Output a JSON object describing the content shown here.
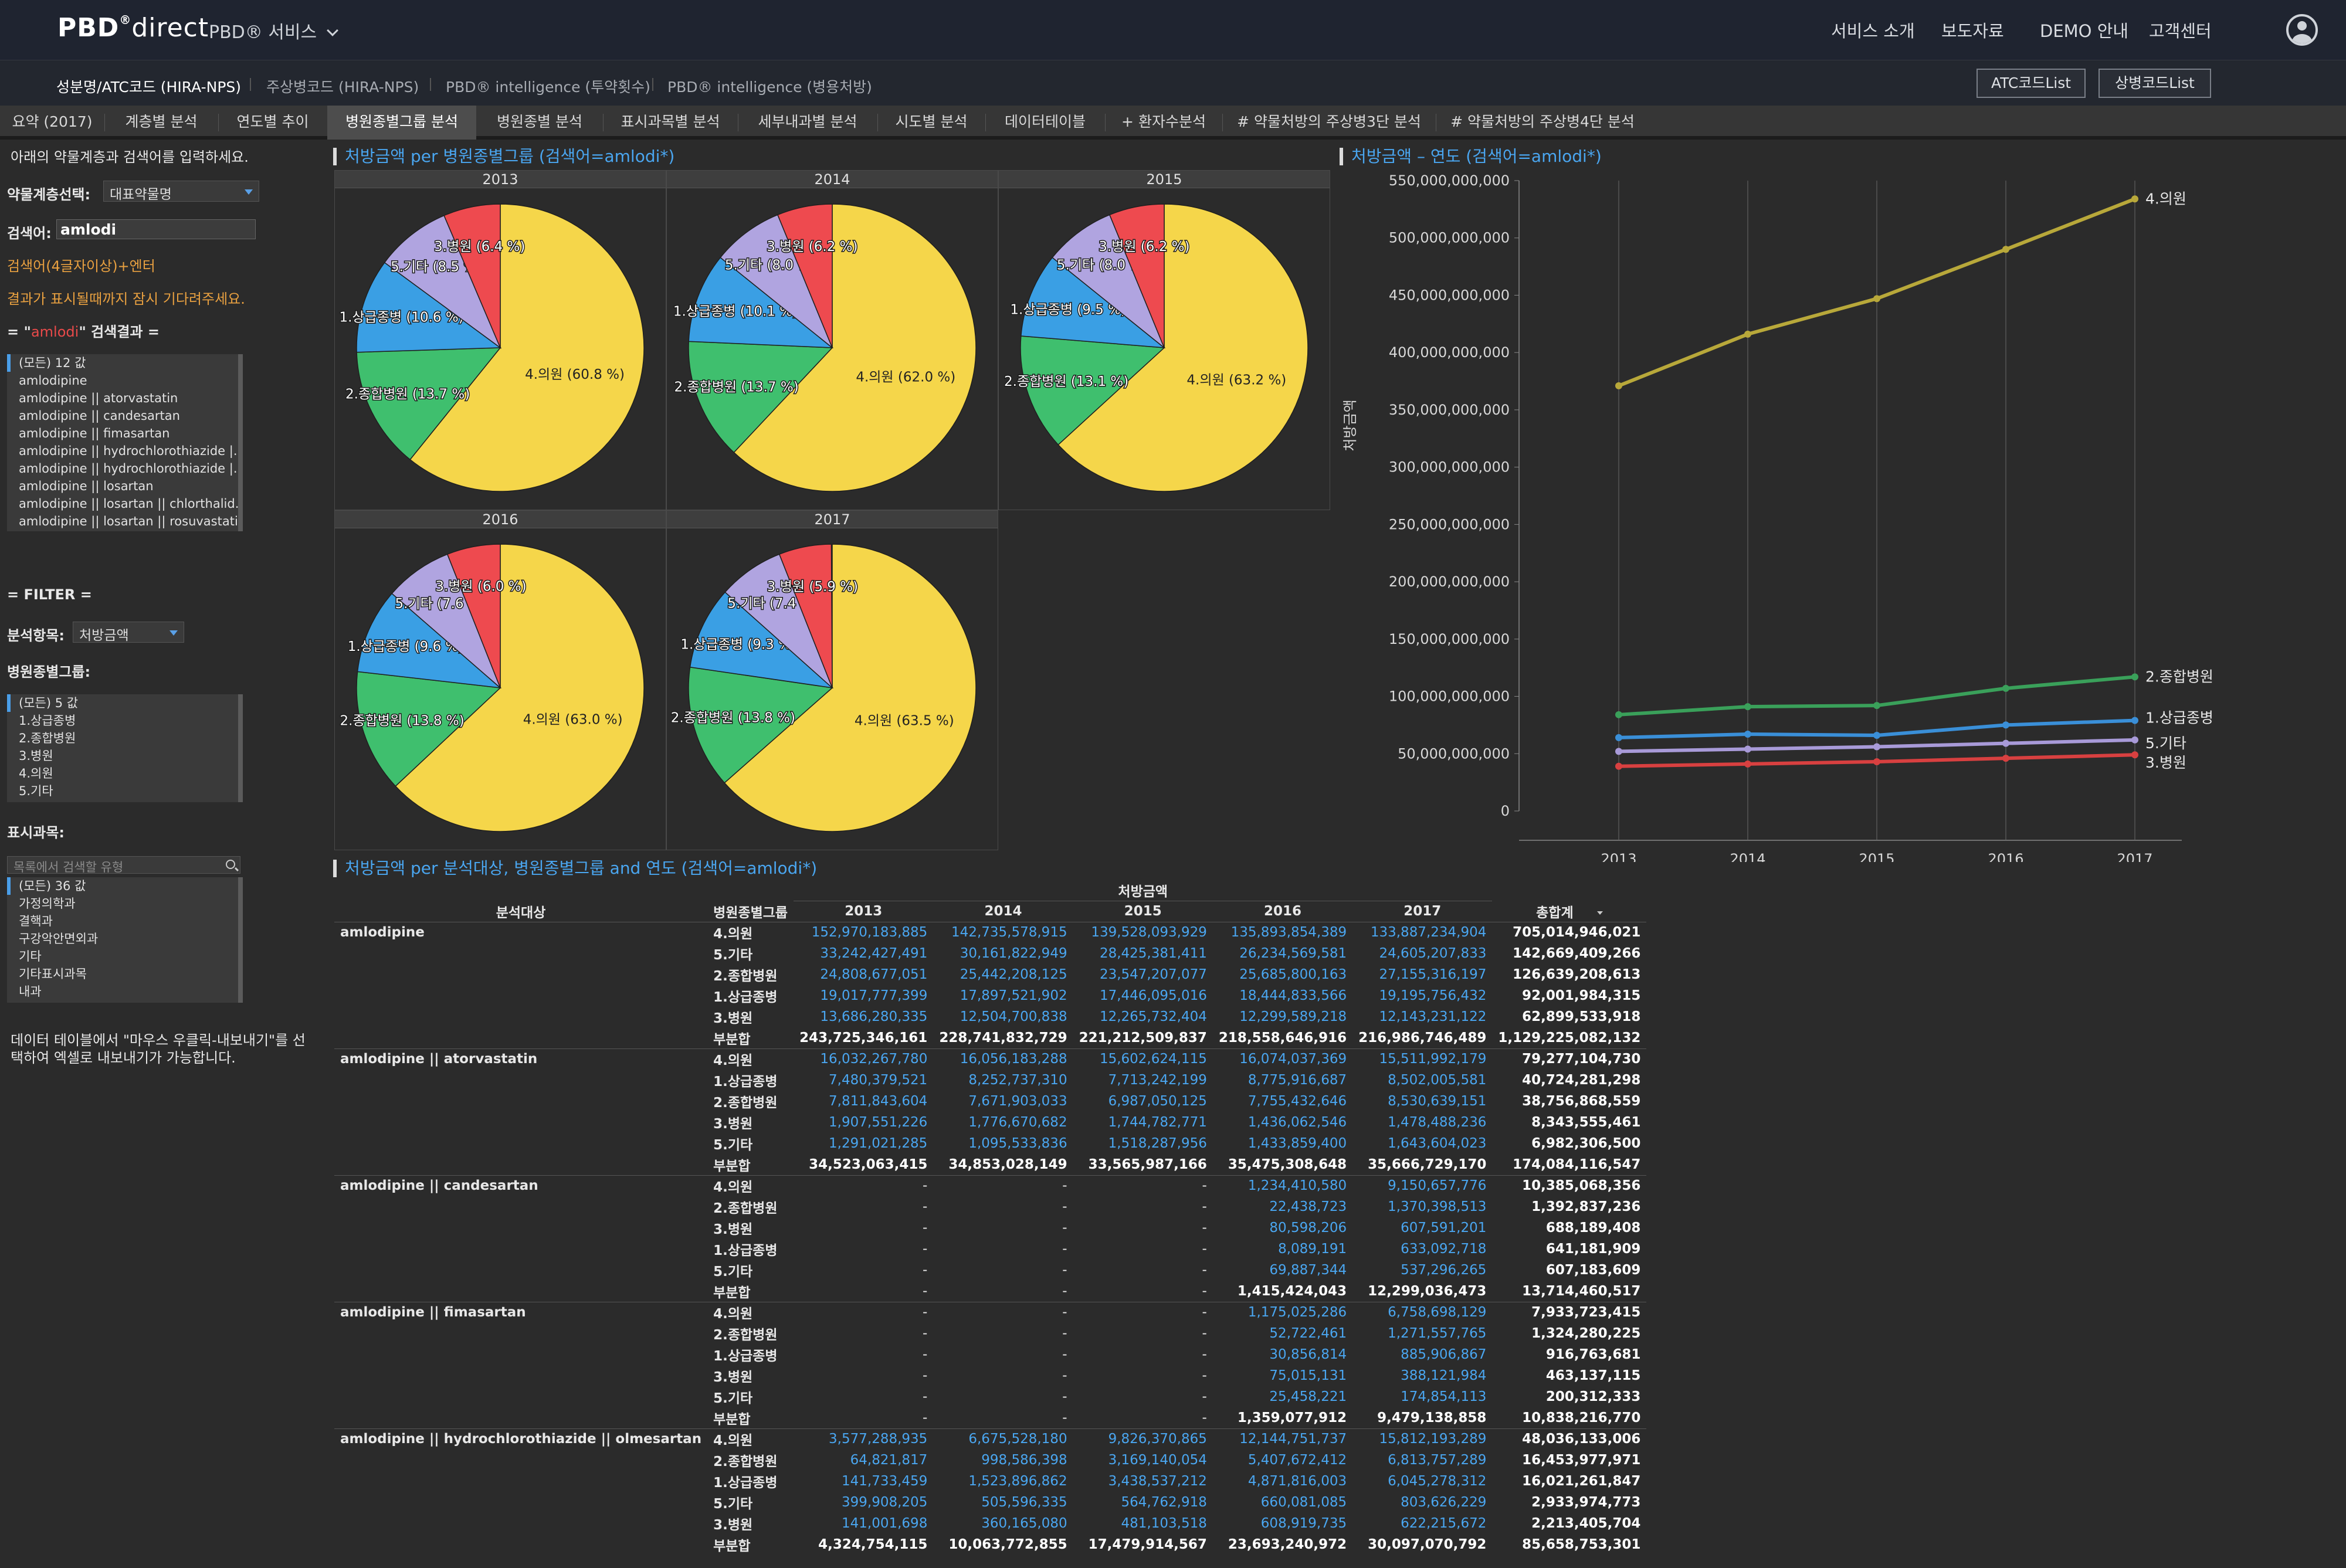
{
  "header": {
    "logo_main": "PBD",
    "logo_reg": "®",
    "logo_thin": "direct",
    "service_menu": "PBD® 서비스",
    "nav": [
      "서비스 소개",
      "보도자료",
      "DEMO 안내",
      "고객센터"
    ]
  },
  "subnav": {
    "tabs": [
      "성분명/ATC코드 (HIRA-NPS)",
      "주상병코드 (HIRA-NPS)",
      "PBD® intelligence (투약횟수)",
      "PBD® intelligence (병용처방)"
    ],
    "atc_button": "ATC코드List",
    "disease_button": "상병코드List"
  },
  "tabs": [
    "요약 (2017)",
    "계층별 분석",
    "연도별 추이",
    "병원종별그룹 분석",
    "병원종별 분석",
    "표시과목별 분석",
    "세부내과별 분석",
    "시도별 분석",
    "데이터테이블",
    "+ 환자수분석",
    "# 약물처방의 주상병3단 분석",
    "# 약물처방의 주상병4단 분석"
  ],
  "left": {
    "intro": "아래의 약물계층과 검색어를 입력하세요.",
    "level_label": "약물계층선택:",
    "level_value": "대표약물명",
    "search_label": "검색어:",
    "search_value": "amlodi",
    "hint1": "검색어(4글자이상)+엔터",
    "hint2": "결과가 표시될때까지 잠시 기다려주세요.",
    "result_prefix": "= \"",
    "result_term": "amlodi",
    "result_suffix": "\" 검색결과 =",
    "results": [
      "(모든) 12 값",
      "amlodipine",
      "amlodipine || atorvastatin",
      "amlodipine || candesartan",
      "amlodipine || fimasartan",
      "amlodipine || hydrochlorothiazide |...",
      "amlodipine || hydrochlorothiazide |...",
      "amlodipine || losartan",
      "amlodipine || losartan || chlorthalid...",
      "amlodipine || losartan || rosuvastatin"
    ],
    "filter_title": "= FILTER =",
    "analysis_label": "분석항목:",
    "analysis_value": "처방금액",
    "hospital_label": "병원종별그룹:",
    "hospital_items": [
      "(모든) 5 값",
      "1.상급종병",
      "2.종합병원",
      "3.병원",
      "4.의원",
      "5.기타"
    ],
    "dept_label": "표시과목:",
    "dept_search_placeholder": "목록에서 검색할 유형",
    "dept_items": [
      "(모든) 36 값",
      "가정의학과",
      "결핵과",
      "구강악안면외과",
      "기타",
      "기타표시과목",
      "내과"
    ],
    "footer_note1": "데이터 테이블에서 \"마우스 우클릭-내보내기\"를 선",
    "footer_note2": "택하여 엑셀로 내보내기가 가능합니다."
  },
  "pie_section": {
    "title": "처방금액 per 병원종별그룹 (검색어=amlodi*)",
    "years": [
      "2013",
      "2014",
      "2015",
      "2016",
      "2017"
    ],
    "pies": [
      {
        "year": "2013",
        "slices": [
          {
            "name": "4.의원",
            "pct": 60.8,
            "label": "4.의원  (60.8 %)"
          },
          {
            "name": "2.종합병원",
            "pct": 13.7,
            "label": "2.종합병원  (13.7 %)"
          },
          {
            "name": "1.상급종병",
            "pct": 10.6,
            "label": "1.상급종병  (10.6 %)"
          },
          {
            "name": "5.기타",
            "pct": 8.5,
            "label": "5.기타  (8.5 %)"
          },
          {
            "name": "3.병원",
            "pct": 6.4,
            "label": "3.병원  (6.4 %)"
          }
        ]
      },
      {
        "year": "2014",
        "slices": [
          {
            "name": "4.의원",
            "pct": 62.0,
            "label": "4.의원  (62.0 %)"
          },
          {
            "name": "2.종합병원",
            "pct": 13.7,
            "label": "2.종합병원  (13.7 %)"
          },
          {
            "name": "1.상급종병",
            "pct": 10.1,
            "label": "1.상급종병  (10.1 %)"
          },
          {
            "name": "5.기타",
            "pct": 8.0,
            "label": "5.기타  (8.0 %)"
          },
          {
            "name": "3.병원",
            "pct": 6.2,
            "label": "3.병원  (6.2 %)"
          }
        ]
      },
      {
        "year": "2015",
        "slices": [
          {
            "name": "4.의원",
            "pct": 63.2,
            "label": "4.의원  (63.2 %)"
          },
          {
            "name": "2.종합병원",
            "pct": 13.1,
            "label": "2.종합병원  (13.1 %)"
          },
          {
            "name": "1.상급종병",
            "pct": 9.5,
            "label": "1.상급종병  (9.5 %)"
          },
          {
            "name": "5.기타",
            "pct": 8.0,
            "label": "5.기타  (8.0 %)"
          },
          {
            "name": "3.병원",
            "pct": 6.2,
            "label": "3.병원  (6.2 %)"
          }
        ]
      },
      {
        "year": "2016",
        "slices": [
          {
            "name": "4.의원",
            "pct": 63.0,
            "label": "4.의원  (63.0 %)"
          },
          {
            "name": "2.종합병원",
            "pct": 13.8,
            "label": "2.종합병원  (13.8 %)"
          },
          {
            "name": "1.상급종병",
            "pct": 9.6,
            "label": "1.상급종병  (9.6 %)"
          },
          {
            "name": "5.기타",
            "pct": 7.6,
            "label": "5.기타  (7.6 %)"
          },
          {
            "name": "3.병원",
            "pct": 6.0,
            "label": "3.병원  (6.0 %)"
          }
        ]
      },
      {
        "year": "2017",
        "slices": [
          {
            "name": "4.의원",
            "pct": 63.5,
            "label": "4.의원  (63.5 %)"
          },
          {
            "name": "2.종합병원",
            "pct": 13.8,
            "label": "2.종합병원  (13.8 %)"
          },
          {
            "name": "1.상급종병",
            "pct": 9.3,
            "label": "1.상급종병  (9.3 %)"
          },
          {
            "name": "5.기타",
            "pct": 7.4,
            "label": "5.기타  (7.4 %)"
          },
          {
            "name": "3.병원",
            "pct": 5.9,
            "label": "3.병원  (5.9 %)"
          }
        ]
      }
    ],
    "colors": {
      "4.의원": "#f5d64a",
      "2.종합병원": "#3fbf6e",
      "1.상급종병": "#3a9fe4",
      "5.기타": "#b0a4e0",
      "3.병원": "#ee4a4f"
    }
  },
  "chart_data": {
    "type": "line",
    "title": "처방금액 – 연도 (검색어=amlodi*)",
    "ylabel": "처방금액",
    "x": [
      "2013",
      "2014",
      "2015",
      "2016",
      "2017"
    ],
    "ylim": [
      0,
      550000000000
    ],
    "yticks": [
      "550,000,000,000",
      "500,000,000,000",
      "450,000,000,000",
      "400,000,000,000",
      "350,000,000,000",
      "300,000,000,000",
      "250,000,000,000",
      "200,000,000,000",
      "150,000,000,000",
      "100,000,000,000",
      "50,000,000,000",
      "0"
    ],
    "series": [
      {
        "name": "4.의원",
        "color": "#b8a83a",
        "values": [
          371000000000,
          416000000000,
          447000000000,
          490000000000,
          534000000000
        ]
      },
      {
        "name": "2.종합병원",
        "color": "#3aa05a",
        "values": [
          84000000000,
          91000000000,
          92000000000,
          107000000000,
          117000000000
        ]
      },
      {
        "name": "1.상급종병",
        "color": "#3a8fd8",
        "values": [
          64000000000,
          67000000000,
          66000000000,
          75000000000,
          79000000000
        ]
      },
      {
        "name": "5.기타",
        "color": "#a89ad8",
        "values": [
          52000000000,
          54000000000,
          56000000000,
          59000000000,
          62000000000
        ]
      },
      {
        "name": "3.병원",
        "color": "#d84040",
        "values": [
          39000000000,
          41000000000,
          43000000000,
          46000000000,
          49000000000
        ]
      }
    ]
  },
  "table": {
    "title": "처방금액 per 분석대상, 병원종별그룹 and 연도 (검색어=amlodi*)",
    "measure": "처방금액",
    "col_target": "분석대상",
    "col_group": "병원종별그룹",
    "years": [
      "2013",
      "2014",
      "2015",
      "2016",
      "2017"
    ],
    "col_total": "총합계",
    "groups": [
      {
        "name": "amlodipine",
        "rows": [
          {
            "g": "4.의원",
            "v": [
              "152,970,183,885",
              "142,735,578,915",
              "139,528,093,929",
              "135,893,854,389",
              "133,887,234,904"
            ],
            "t": "705,014,946,021"
          },
          {
            "g": "5.기타",
            "v": [
              "33,242,427,491",
              "30,161,822,949",
              "28,425,381,411",
              "26,234,569,581",
              "24,605,207,833"
            ],
            "t": "142,669,409,266"
          },
          {
            "g": "2.종합병원",
            "v": [
              "24,808,677,051",
              "25,442,208,125",
              "23,547,207,077",
              "25,685,800,163",
              "27,155,316,197"
            ],
            "t": "126,639,208,613"
          },
          {
            "g": "1.상급종병",
            "v": [
              "19,017,777,399",
              "17,897,521,902",
              "17,446,095,016",
              "18,444,833,566",
              "19,195,756,432"
            ],
            "t": "92,001,984,315"
          },
          {
            "g": "3.병원",
            "v": [
              "13,686,280,335",
              "12,504,700,838",
              "12,265,732,404",
              "12,299,589,218",
              "12,143,231,122"
            ],
            "t": "62,899,533,918"
          },
          {
            "g": "부분합",
            "sub": true,
            "v": [
              "243,725,346,161",
              "228,741,832,729",
              "221,212,509,837",
              "218,558,646,916",
              "216,986,746,489"
            ],
            "t": "1,129,225,082,132"
          }
        ]
      },
      {
        "name": "amlodipine || atorvastatin",
        "rows": [
          {
            "g": "4.의원",
            "v": [
              "16,032,267,780",
              "16,056,183,288",
              "15,602,624,115",
              "16,074,037,369",
              "15,511,992,179"
            ],
            "t": "79,277,104,730"
          },
          {
            "g": "1.상급종병",
            "v": [
              "7,480,379,521",
              "8,252,737,310",
              "7,713,242,199",
              "8,775,916,687",
              "8,502,005,581"
            ],
            "t": "40,724,281,298"
          },
          {
            "g": "2.종합병원",
            "v": [
              "7,811,843,604",
              "7,671,903,033",
              "6,987,050,125",
              "7,755,432,646",
              "8,530,639,151"
            ],
            "t": "38,756,868,559"
          },
          {
            "g": "3.병원",
            "v": [
              "1,907,551,226",
              "1,776,670,682",
              "1,744,782,771",
              "1,436,062,546",
              "1,478,488,236"
            ],
            "t": "8,343,555,461"
          },
          {
            "g": "5.기타",
            "v": [
              "1,291,021,285",
              "1,095,533,836",
              "1,518,287,956",
              "1,433,859,400",
              "1,643,604,023"
            ],
            "t": "6,982,306,500"
          },
          {
            "g": "부분합",
            "sub": true,
            "v": [
              "34,523,063,415",
              "34,853,028,149",
              "33,565,987,166",
              "35,475,308,648",
              "35,666,729,170"
            ],
            "t": "174,084,116,547"
          }
        ]
      },
      {
        "name": "amlodipine || candesartan",
        "rows": [
          {
            "g": "4.의원",
            "v": [
              "-",
              "-",
              "-",
              "1,234,410,580",
              "9,150,657,776"
            ],
            "t": "10,385,068,356"
          },
          {
            "g": "2.종합병원",
            "v": [
              "-",
              "-",
              "-",
              "22,438,723",
              "1,370,398,513"
            ],
            "t": "1,392,837,236"
          },
          {
            "g": "3.병원",
            "v": [
              "-",
              "-",
              "-",
              "80,598,206",
              "607,591,201"
            ],
            "t": "688,189,408"
          },
          {
            "g": "1.상급종병",
            "v": [
              "-",
              "-",
              "-",
              "8,089,191",
              "633,092,718"
            ],
            "t": "641,181,909"
          },
          {
            "g": "5.기타",
            "v": [
              "-",
              "-",
              "-",
              "69,887,344",
              "537,296,265"
            ],
            "t": "607,183,609"
          },
          {
            "g": "부분합",
            "sub": true,
            "v": [
              "-",
              "-",
              "-",
              "1,415,424,043",
              "12,299,036,473"
            ],
            "t": "13,714,460,517"
          }
        ]
      },
      {
        "name": "amlodipine || fimasartan",
        "rows": [
          {
            "g": "4.의원",
            "v": [
              "-",
              "-",
              "-",
              "1,175,025,286",
              "6,758,698,129"
            ],
            "t": "7,933,723,415"
          },
          {
            "g": "2.종합병원",
            "v": [
              "-",
              "-",
              "-",
              "52,722,461",
              "1,271,557,765"
            ],
            "t": "1,324,280,225"
          },
          {
            "g": "1.상급종병",
            "v": [
              "-",
              "-",
              "-",
              "30,856,814",
              "885,906,867"
            ],
            "t": "916,763,681"
          },
          {
            "g": "3.병원",
            "v": [
              "-",
              "-",
              "-",
              "75,015,131",
              "388,121,984"
            ],
            "t": "463,137,115"
          },
          {
            "g": "5.기타",
            "v": [
              "-",
              "-",
              "-",
              "25,458,221",
              "174,854,113"
            ],
            "t": "200,312,333"
          },
          {
            "g": "부분합",
            "sub": true,
            "v": [
              "-",
              "-",
              "-",
              "1,359,077,912",
              "9,479,138,858"
            ],
            "t": "10,838,216,770"
          }
        ]
      },
      {
        "name": "amlodipine || hydrochlorothiazide || olmesartan",
        "rows": [
          {
            "g": "4.의원",
            "v": [
              "3,577,288,935",
              "6,675,528,180",
              "9,826,370,865",
              "12,144,751,737",
              "15,812,193,289"
            ],
            "t": "48,036,133,006"
          },
          {
            "g": "2.종합병원",
            "v": [
              "64,821,817",
              "998,586,398",
              "3,169,140,054",
              "5,407,672,412",
              "6,813,757,289"
            ],
            "t": "16,453,977,971"
          },
          {
            "g": "1.상급종병",
            "v": [
              "141,733,459",
              "1,523,896,862",
              "3,438,537,212",
              "4,871,816,003",
              "6,045,278,312"
            ],
            "t": "16,021,261,847"
          },
          {
            "g": "5.기타",
            "v": [
              "399,908,205",
              "505,596,335",
              "564,762,918",
              "660,081,085",
              "803,626,229"
            ],
            "t": "2,933,974,773"
          },
          {
            "g": "3.병원",
            "v": [
              "141,001,698",
              "360,165,080",
              "481,103,518",
              "608,919,735",
              "622,215,672"
            ],
            "t": "2,213,405,704"
          },
          {
            "g": "부분합",
            "sub": true,
            "v": [
              "4,324,754,115",
              "10,063,772,855",
              "17,479,914,567",
              "23,693,240,972",
              "30,097,070,792"
            ],
            "t": "85,658,753,301"
          }
        ]
      }
    ]
  }
}
